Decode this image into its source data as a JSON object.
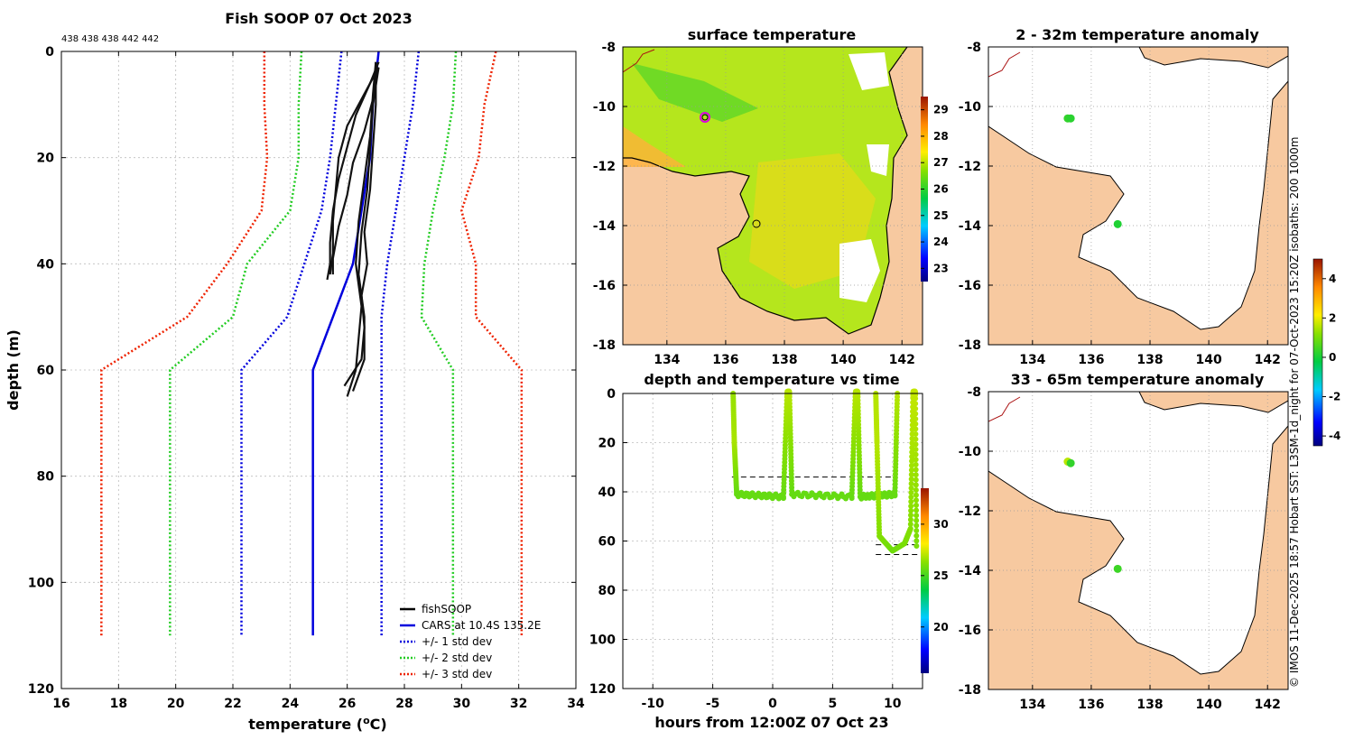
{
  "figure_title": "Fish SOOP 07 Oct 2023",
  "counts_label": "438 438 438 442 442",
  "side_text": "© IMOS 11-Dec-2025 18:57 Hobart SST: L3SM-1d_night for 07-Oct-2023 15:20Z isobaths: 200  1000m",
  "colors": {
    "land": "#f7c9a0",
    "sst_base": "#b5e61d",
    "grid": "#bdbdbd"
  },
  "chart_data": [
    {
      "id": "profile",
      "type": "line",
      "title": "",
      "xlabel_main": "temperature (",
      "xlabel_sup": "o",
      "xlabel_end": "C)",
      "ylabel": "depth (m)",
      "xlim": [
        16,
        34
      ],
      "ylim": [
        0,
        120
      ],
      "yreversed": true,
      "xticks": [
        "16",
        "18",
        "20",
        "22",
        "24",
        "26",
        "28",
        "30",
        "32",
        "34"
      ],
      "yticks": [
        "0",
        "20",
        "40",
        "60",
        "80",
        "100",
        "120"
      ],
      "legend": [
        "fishSOOP",
        "CARS at 10.4S 135.2E",
        "+/- 1 std dev",
        "+/- 2 std dev",
        "+/- 3 std dev"
      ],
      "series": [
        {
          "name": "CARS at 10.4S 135.2E",
          "color": "#0000dd",
          "style": "solid",
          "x": [
            27.1,
            26.9,
            26.8,
            26.5,
            26.2,
            25.5,
            24.8,
            24.8,
            24.8
          ],
          "y": [
            0,
            10,
            20,
            30,
            40,
            50,
            60,
            80,
            110
          ]
        },
        {
          "name": "+1 std dev",
          "color": "#0000dd",
          "style": "dotted",
          "x": [
            28.5,
            28.3,
            28.0,
            27.7,
            27.4,
            27.2,
            27.2,
            27.2,
            27.2
          ],
          "y": [
            0,
            10,
            20,
            30,
            40,
            50,
            60,
            80,
            110
          ]
        },
        {
          "name": "-1 std dev",
          "color": "#0000dd",
          "style": "dotted",
          "x": [
            25.8,
            25.6,
            25.4,
            25.1,
            24.5,
            23.9,
            22.3,
            22.3,
            22.3
          ],
          "y": [
            0,
            10,
            20,
            30,
            40,
            50,
            60,
            80,
            110
          ]
        },
        {
          "name": "+2 std dev",
          "color": "#22cc22",
          "style": "dotted",
          "x": [
            29.8,
            29.7,
            29.4,
            29.0,
            28.7,
            28.6,
            29.7,
            29.7,
            29.7
          ],
          "y": [
            0,
            10,
            20,
            30,
            40,
            50,
            60,
            80,
            110
          ]
        },
        {
          "name": "-2 std dev",
          "color": "#22cc22",
          "style": "dotted",
          "x": [
            24.4,
            24.3,
            24.3,
            24.0,
            22.5,
            22.0,
            19.8,
            19.8,
            19.8
          ],
          "y": [
            0,
            10,
            20,
            30,
            40,
            50,
            60,
            80,
            110
          ]
        },
        {
          "name": "+3 std dev",
          "color": "#ee2200",
          "style": "dotted",
          "x": [
            31.2,
            30.8,
            30.6,
            30.0,
            30.5,
            30.5,
            32.1,
            32.1,
            32.1
          ],
          "y": [
            0,
            10,
            20,
            30,
            40,
            50,
            60,
            80,
            110
          ]
        },
        {
          "name": "-3 std dev",
          "color": "#ee2200",
          "style": "dotted",
          "x": [
            23.1,
            23.1,
            23.2,
            23.0,
            21.8,
            20.4,
            17.4,
            17.4,
            17.4
          ],
          "y": [
            0,
            10,
            20,
            30,
            40,
            50,
            60,
            80,
            110
          ]
        }
      ],
      "fishsoop_casts": [
        {
          "x": [
            27.1,
            26.8,
            26.3,
            26.0,
            25.7,
            25.5,
            25.4,
            25.4,
            25.3
          ],
          "y": [
            2,
            6,
            12,
            18,
            24,
            30,
            36,
            40,
            43
          ]
        },
        {
          "x": [
            27.1,
            26.6,
            26.0,
            25.7,
            25.6,
            25.5,
            25.5,
            25.4
          ],
          "y": [
            3,
            8,
            14,
            20,
            26,
            32,
            38,
            42
          ]
        },
        {
          "x": [
            27.0,
            26.9,
            26.6,
            26.2,
            26.0,
            25.7,
            25.5,
            25.5
          ],
          "y": [
            4,
            9,
            15,
            21,
            27,
            33,
            39,
            42
          ]
        },
        {
          "x": [
            27.0,
            26.9,
            26.8,
            26.6,
            26.4,
            26.3,
            26.5,
            26.4,
            26.3,
            26.0
          ],
          "y": [
            2,
            8,
            16,
            24,
            32,
            40,
            48,
            54,
            60,
            65
          ]
        },
        {
          "x": [
            27.1,
            26.9,
            26.8,
            26.7,
            26.5,
            26.4,
            26.6,
            26.6,
            26.2
          ],
          "y": [
            3,
            10,
            18,
            26,
            34,
            42,
            50,
            58,
            64
          ]
        },
        {
          "x": [
            27.0,
            27.0,
            26.9,
            26.8,
            26.6,
            26.7,
            26.5,
            26.6,
            26.5,
            25.9
          ],
          "y": [
            2,
            10,
            18,
            26,
            34,
            40,
            46,
            52,
            58,
            63
          ]
        }
      ]
    },
    {
      "id": "time",
      "type": "scatter",
      "title": "depth and temperature vs time",
      "xlabel": "hours from 12:00Z 07 Oct 23",
      "ylabel": "",
      "xlim": [
        -12.5,
        12.5
      ],
      "ylim": [
        0,
        120
      ],
      "yreversed": true,
      "xticks": [
        "-10",
        "-5",
        "0",
        "5",
        "10"
      ],
      "yticks": [
        "0",
        "20",
        "40",
        "60",
        "80",
        "100",
        "120"
      ],
      "colorbar": {
        "min": 15.5,
        "max": 33.5,
        "ticks": [
          "20",
          "25",
          "30"
        ]
      },
      "dashed_lines": [
        {
          "depth": 34,
          "x0": -3.4,
          "x1": 10.3
        },
        {
          "depth": 61.5,
          "x0": 8.6,
          "x1": 12.3
        },
        {
          "depth": 65.5,
          "x0": 8.6,
          "x1": 12.3
        }
      ],
      "segments": [
        {
          "x": [
            -3.3,
            -3.2,
            -3.0,
            0.9,
            1.2,
            1.4,
            1.6,
            6.6,
            6.9,
            7.1,
            7.3,
            10.2,
            10.4
          ],
          "y": [
            0,
            20,
            41,
            42,
            0,
            0,
            41,
            42,
            0,
            0,
            42,
            41,
            0
          ],
          "temp": [
            26.5,
            26.8,
            25.6,
            25.6,
            27.0,
            27.0,
            25.6,
            25.6,
            27.0,
            27.0,
            25.6,
            25.6,
            27.0
          ]
        },
        {
          "x": [
            8.6,
            8.7,
            8.9,
            10.0,
            11.0,
            11.5,
            11.7,
            11.9,
            12.0
          ],
          "y": [
            0,
            20,
            58,
            64,
            61,
            55,
            0,
            0,
            62
          ],
          "temp": [
            27.0,
            27.0,
            26.2,
            25.8,
            26.0,
            26.2,
            27.2,
            27.2,
            26.0
          ]
        }
      ]
    },
    {
      "id": "sst",
      "type": "heatmap",
      "title": "surface temperature",
      "xlim": [
        132.5,
        142.7
      ],
      "ylim": [
        -18,
        -8
      ],
      "xticks": [
        "134",
        "136",
        "138",
        "140",
        "142"
      ],
      "yticks": [
        "-8",
        "-10",
        "-12",
        "-14",
        "-16",
        "-18"
      ],
      "colorbar": {
        "min": 22.5,
        "max": 29.5,
        "ticks": [
          "23",
          "24",
          "25",
          "26",
          "27",
          "28",
          "29"
        ]
      },
      "markers": [
        {
          "lon": 135.2,
          "lat": -10.4,
          "kind": "circle-magenta"
        },
        {
          "lon": 136.9,
          "lat": -13.9,
          "kind": "circle-black"
        }
      ]
    },
    {
      "id": "anom2_32",
      "type": "heatmap",
      "title": "2 - 32m temperature anomaly",
      "xlim": [
        132.5,
        142.7
      ],
      "ylim": [
        -18,
        -8
      ],
      "xticks": [
        "134",
        "136",
        "138",
        "140",
        "142"
      ],
      "yticks": [
        "-8",
        "-10",
        "-12",
        "-14",
        "-16",
        "-18"
      ],
      "points": [
        {
          "lon": 135.2,
          "lat": -10.4,
          "value": 0.3
        },
        {
          "lon": 135.3,
          "lat": -10.4,
          "value": 0.2
        },
        {
          "lon": 136.9,
          "lat": -13.95,
          "value": 0.1
        }
      ]
    },
    {
      "id": "anom33_65",
      "type": "heatmap",
      "title": "33 - 65m temperature anomaly",
      "xlim": [
        132.5,
        142.7
      ],
      "ylim": [
        -18,
        -8
      ],
      "xticks": [
        "134",
        "136",
        "138",
        "140",
        "142"
      ],
      "yticks": [
        "-8",
        "-10",
        "-12",
        "-14",
        "-16",
        "-18"
      ],
      "points": [
        {
          "lon": 135.2,
          "lat": -10.35,
          "value": 1.6
        },
        {
          "lon": 135.3,
          "lat": -10.4,
          "value": 0.3
        },
        {
          "lon": 136.9,
          "lat": -13.95,
          "value": 0.4
        }
      ]
    },
    {
      "id": "anom_colorbar",
      "type": "heatmap",
      "colorbar": {
        "min": -4.5,
        "max": 5.0,
        "ticks": [
          "4",
          "2",
          "0",
          "-2",
          "-4"
        ]
      }
    }
  ]
}
